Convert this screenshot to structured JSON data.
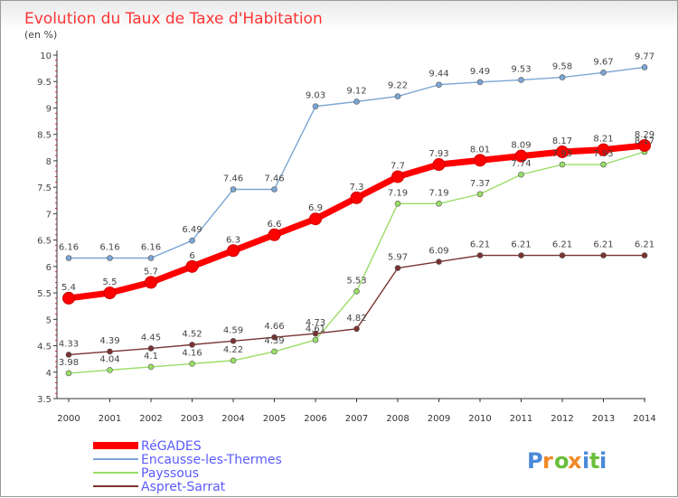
{
  "chart_data": {
    "type": "line",
    "title": "Evolution du Taux de Taxe d'Habitation",
    "subtitle": "(en %)",
    "xlabel": "",
    "ylabel": "",
    "x": [
      "2000",
      "2001",
      "2002",
      "2003",
      "2004",
      "2005",
      "2006",
      "2007",
      "2008",
      "2009",
      "2010",
      "2011",
      "2012",
      "2013",
      "2014"
    ],
    "ylim": [
      3.5,
      10
    ],
    "yticks": [
      "3.5",
      "4",
      "4.5",
      "5",
      "5.5",
      "6",
      "6.5",
      "7",
      "7.5",
      "8",
      "8.5",
      "9",
      "9.5",
      "10"
    ],
    "grid": false,
    "legend_placement": "bottom-left",
    "series": [
      {
        "name": "RéGADES",
        "color": "#ff0000",
        "emphasis": true,
        "values": [
          5.4,
          5.5,
          5.7,
          6,
          6.3,
          6.6,
          6.9,
          7.3,
          7.7,
          7.93,
          8.01,
          8.09,
          8.17,
          8.21,
          8.29
        ],
        "labels": [
          "5.4",
          "5.5",
          "5.7",
          "6",
          "6.3",
          "6.6",
          "6.9",
          "7.3",
          "7.7",
          "7.93",
          "8.01",
          "8.09",
          "8.17",
          "8.21",
          "8.29"
        ]
      },
      {
        "name": "Encausse-les-Thermes",
        "color": "#7ba6d4",
        "values": [
          6.16,
          6.16,
          6.16,
          6.49,
          7.46,
          7.46,
          9.03,
          9.12,
          9.22,
          9.44,
          9.49,
          9.53,
          9.58,
          9.67,
          9.77
        ],
        "labels": [
          "6.16",
          "6.16",
          "6.16",
          "6.49",
          "7.46",
          "7.46",
          "9.03",
          "9.12",
          "9.22",
          "9.44",
          "9.49",
          "9.53",
          "9.58",
          "9.67",
          "9.77"
        ]
      },
      {
        "name": "Payssous",
        "color": "#99dd66",
        "values": [
          3.98,
          4.04,
          4.1,
          4.16,
          4.22,
          4.39,
          4.61,
          5.53,
          7.19,
          7.19,
          7.37,
          7.74,
          7.93,
          7.93,
          8.17
        ],
        "labels": [
          "3.98",
          "4.04",
          "4.1",
          "4.16",
          "4.22",
          "4.39",
          "4.61",
          "5.53",
          "7.19",
          "7.19",
          "7.37",
          "7.74",
          "7.93",
          "7.93",
          "8.17"
        ]
      },
      {
        "name": "Aspret-Sarrat",
        "color": "#7a3232",
        "values": [
          4.33,
          4.39,
          4.45,
          4.52,
          4.59,
          4.66,
          4.73,
          4.82,
          5.97,
          6.09,
          6.21,
          6.21,
          6.21,
          6.21,
          6.21
        ],
        "labels": [
          "4.33",
          "4.39",
          "4.45",
          "4.52",
          "4.59",
          "4.66",
          "4.73",
          "4.82",
          "5.97",
          "6.09",
          "6.21",
          "6.21",
          "6.21",
          "6.21",
          "6.21"
        ]
      }
    ]
  },
  "logo_text": "Proxiti",
  "colors": {
    "title": "#ff3333",
    "axis": "#333333",
    "tick_minor": "#cc0000",
    "label_text": "#444444",
    "legend_text": "#5b5bff",
    "logo_p": "#4a8ad8",
    "logo_r": "#f08a2a",
    "logo_o": "#6abf3a",
    "logo_x": "#f08a2a",
    "logo_i": "#4a8ad8",
    "logo_t": "#6abf3a"
  }
}
